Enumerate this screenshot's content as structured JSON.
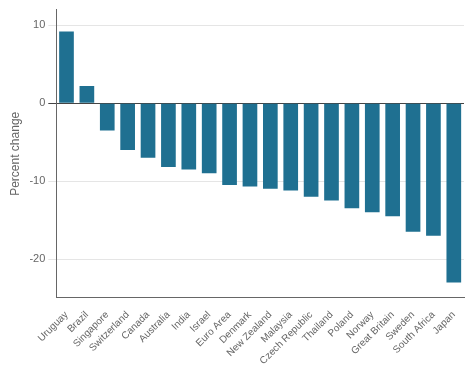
{
  "chart_data": {
    "type": "bar",
    "ylabel": "Percent change",
    "categories": [
      "Uruguay",
      "Brazil",
      "Singapore",
      "Switzerland",
      "Canada",
      "Australia",
      "India",
      "Israel",
      "Euro Area",
      "Denmark",
      "New Zealand",
      "Malaysia",
      "Czech Republic",
      "Thailand",
      "Poland",
      "Norway",
      "Great Britain",
      "Sweden",
      "South Africa",
      "Japan"
    ],
    "values": [
      9.2,
      2.2,
      -3.5,
      -6.0,
      -7.0,
      -8.2,
      -8.5,
      -9.0,
      -10.5,
      -10.7,
      -11.0,
      -11.2,
      -12.0,
      -12.5,
      -13.5,
      -14.0,
      -14.5,
      -16.5,
      -17.0,
      -23.0
    ],
    "color": "#1f7091",
    "ylim": [
      -25,
      12
    ],
    "yticks": [
      -20,
      -10,
      0,
      10
    ],
    "grid": true
  }
}
